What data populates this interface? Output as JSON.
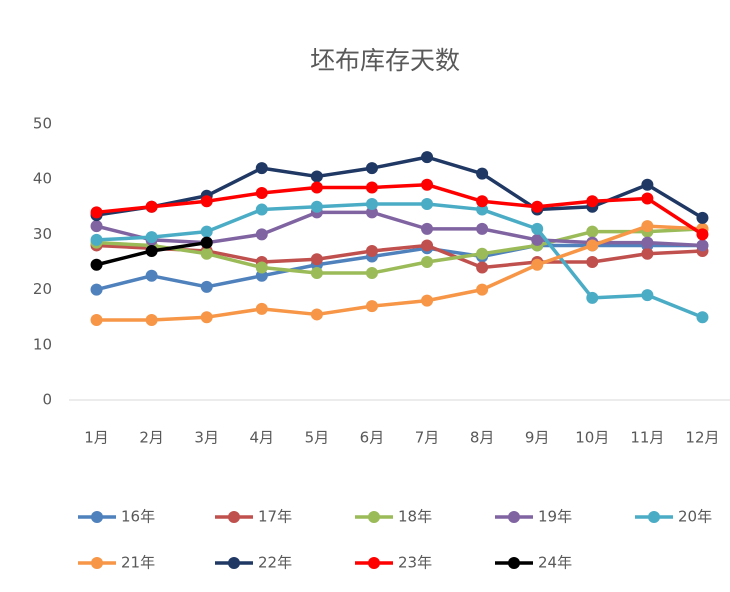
{
  "chart_data": {
    "type": "line",
    "title": "坯布库存天数",
    "categories": [
      "1月",
      "2月",
      "3月",
      "4月",
      "5月",
      "6月",
      "7月",
      "8月",
      "9月",
      "10月",
      "11月",
      "12月"
    ],
    "ylim": [
      0,
      50
    ],
    "yticks": [
      0,
      10,
      20,
      30,
      40,
      50
    ],
    "series": [
      {
        "name": "16年",
        "color": "#4f81bd",
        "values": [
          20,
          22.5,
          20.5,
          22.5,
          24.5,
          26,
          27.5,
          26,
          28,
          28,
          28,
          28
        ]
      },
      {
        "name": "17年",
        "color": "#c0504d",
        "values": [
          28,
          27.5,
          27,
          25,
          25.5,
          27,
          28,
          24,
          25,
          25,
          26.5,
          27
        ]
      },
      {
        "name": "18年",
        "color": "#9bbb59",
        "values": [
          28.5,
          28,
          26.5,
          24,
          23,
          23,
          25,
          26.5,
          28,
          30.5,
          30.5,
          31
        ]
      },
      {
        "name": "19年",
        "color": "#8064a2",
        "values": [
          31.5,
          29,
          28.5,
          30,
          34,
          34,
          31,
          31,
          29,
          28.5,
          28.5,
          28
        ]
      },
      {
        "name": "20年",
        "color": "#4bacc6",
        "values": [
          29,
          29.5,
          30.5,
          34.5,
          35,
          35.5,
          35.5,
          34.5,
          31,
          18.5,
          19,
          15
        ]
      },
      {
        "name": "21年",
        "color": "#f79646",
        "values": [
          14.5,
          14.5,
          15,
          16.5,
          15.5,
          17,
          18,
          20,
          24.5,
          28,
          31.5,
          31
        ]
      },
      {
        "name": "22年",
        "color": "#1f3864",
        "values": [
          33.5,
          35,
          37,
          42,
          40.5,
          42,
          44,
          41,
          34.5,
          35,
          39,
          33
        ]
      },
      {
        "name": "23年",
        "color": "#ff0000",
        "values": [
          34,
          35,
          36,
          37.5,
          38.5,
          38.5,
          39,
          36,
          35,
          36,
          36.5,
          30
        ]
      },
      {
        "name": "24年",
        "color": "#000000",
        "values": [
          24.5,
          27,
          28.5,
          null,
          null,
          null,
          null,
          null,
          null,
          null,
          null,
          null
        ]
      }
    ]
  }
}
